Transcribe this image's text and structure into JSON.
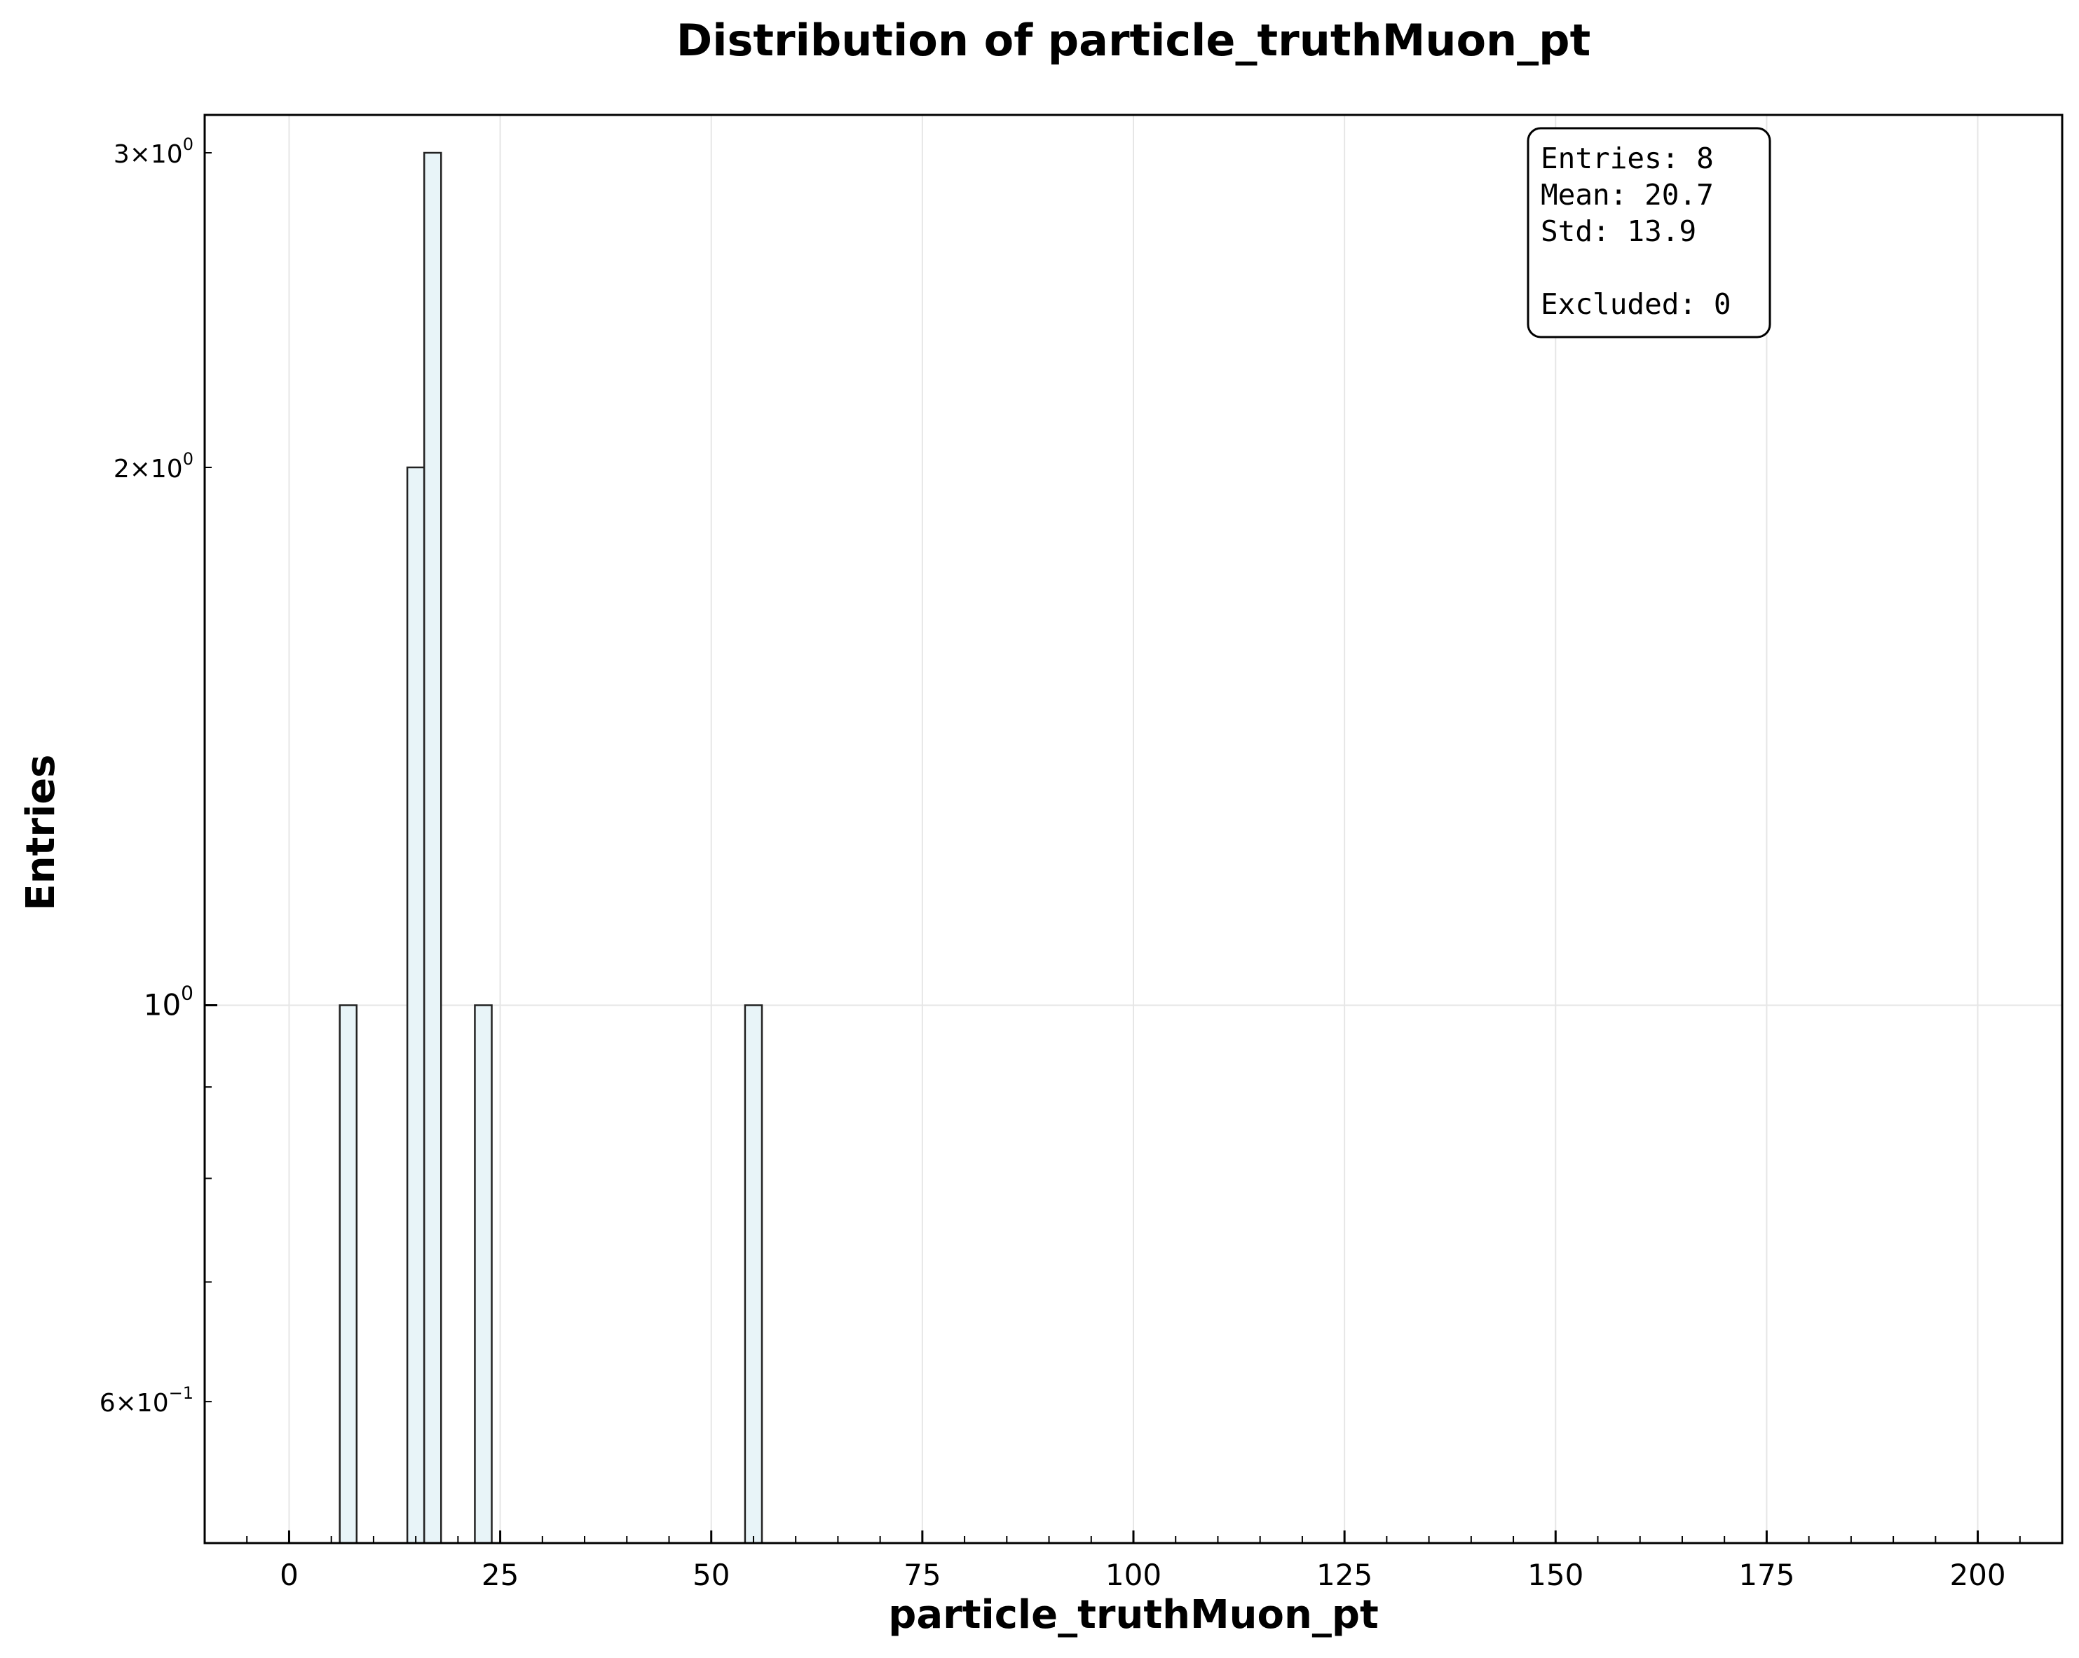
{
  "chart_data": {
    "type": "bar",
    "title": "Distribution of particle_truthMuon_pt",
    "xlabel": "particle_truthMuon_pt",
    "ylabel": "Entries",
    "x_range": [
      -10,
      210
    ],
    "y_scale": "log",
    "y_range": [
      0.5,
      3.15
    ],
    "bin_width": 2,
    "x_ticks": [
      0,
      25,
      50,
      75,
      100,
      125,
      150,
      175,
      200
    ],
    "y_ticks": [
      {
        "value": 3,
        "mantissa": "3",
        "exponent": "0"
      },
      {
        "value": 2,
        "mantissa": "2",
        "exponent": "0"
      },
      {
        "value": 1,
        "mantissa": "",
        "exponent": "0"
      },
      {
        "value": 0.6,
        "mantissa": "6",
        "exponent": "−1"
      }
    ],
    "bins": [
      {
        "x0": 6,
        "x1": 8,
        "count": 1
      },
      {
        "x0": 14,
        "x1": 16,
        "count": 2
      },
      {
        "x0": 16,
        "x1": 18,
        "count": 3
      },
      {
        "x0": 22,
        "x1": 24,
        "count": 1
      },
      {
        "x0": 54,
        "x1": 56,
        "count": 1
      }
    ],
    "grid": true,
    "bar_fill": "#e8f4f8",
    "bar_edge": "#222222",
    "stats_box": {
      "placement": "top-right",
      "lines": [
        "Entries: 8",
        "Mean: 20.7",
        "Std: 13.9",
        "",
        "Excluded: 0"
      ]
    }
  }
}
